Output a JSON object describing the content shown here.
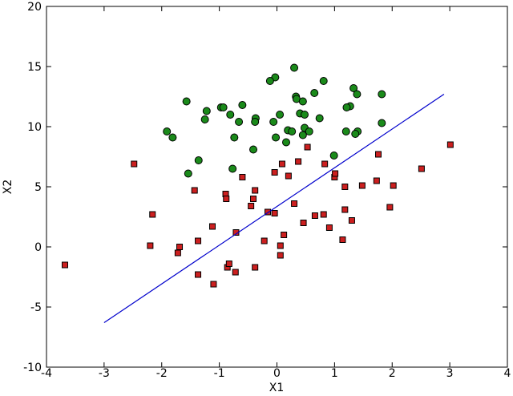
{
  "chart_data": {
    "type": "scatter",
    "xlabel": "X1",
    "ylabel": "X2",
    "xlim": [
      -4,
      4
    ],
    "ylim": [
      -10,
      20
    ],
    "xticks": [
      -4,
      -3,
      -2,
      -1,
      0,
      1,
      2,
      3,
      4
    ],
    "yticks": [
      -10,
      -5,
      0,
      5,
      10,
      15,
      20
    ],
    "series": [
      {
        "type": "scatter",
        "marker": "circle",
        "color": "#1a8a1a",
        "x": [
          0.3,
          -0.03,
          -0.12,
          0.81,
          1.33,
          1.39,
          1.82,
          0.33,
          0.34,
          0.65,
          0.45,
          -0.6,
          -0.97,
          -0.93,
          -1.22,
          -1.57,
          1.27,
          1.21,
          -0.81,
          0.05,
          0.4,
          0.48,
          0.74,
          -0.37,
          -1.25,
          -0.66,
          -0.38,
          -0.06,
          1.82,
          0.19,
          0.26,
          0.48,
          0.56,
          -1.91,
          1.2,
          1.4,
          -1.81,
          -0.74,
          -0.02,
          0.45,
          0.16,
          -0.41,
          -1.36,
          0.99,
          -0.77,
          -1.54,
          1.36
        ],
        "values": [
          14.9,
          14.1,
          13.8,
          13.8,
          13.2,
          12.7,
          12.7,
          12.5,
          12.3,
          12.8,
          12.1,
          11.8,
          11.6,
          11.6,
          11.3,
          12.1,
          11.7,
          11.6,
          11.0,
          11.0,
          11.1,
          11.0,
          10.7,
          10.7,
          10.6,
          10.4,
          10.4,
          10.4,
          10.3,
          9.7,
          9.6,
          9.9,
          9.6,
          9.6,
          9.6,
          9.6,
          9.1,
          9.1,
          9.1,
          9.3,
          8.7,
          8.1,
          7.2,
          7.6,
          6.5,
          6.1,
          9.4
        ]
      },
      {
        "type": "scatter",
        "marker": "square",
        "color": "#cc1f1f",
        "x": [
          -3.68,
          -2.48,
          -2.16,
          -2.2,
          -1.69,
          -1.72,
          -1.43,
          -1.37,
          -1.37,
          -1.12,
          -1.1,
          -0.89,
          -0.88,
          -0.86,
          -0.83,
          -0.71,
          -0.72,
          -0.6,
          -0.45,
          -0.38,
          -0.41,
          -0.38,
          -0.22,
          -0.16,
          -0.04,
          -0.04,
          0.06,
          0.06,
          0.09,
          0.12,
          0.2,
          0.3,
          0.37,
          0.46,
          0.53,
          0.66,
          0.81,
          0.83,
          0.91,
          1.0,
          1.01,
          1.14,
          1.18,
          1.18,
          1.3,
          1.48,
          1.73,
          1.76,
          1.96,
          2.02,
          2.51,
          3.01
        ],
        "values": [
          -1.5,
          6.9,
          2.7,
          0.1,
          0.0,
          -0.5,
          4.7,
          0.5,
          -2.3,
          1.7,
          -3.1,
          4.4,
          4.0,
          -1.7,
          -1.4,
          1.2,
          -2.1,
          5.8,
          3.4,
          4.7,
          4.0,
          -1.7,
          0.5,
          2.9,
          2.8,
          6.2,
          0.1,
          -0.7,
          6.9,
          1.0,
          5.9,
          3.6,
          7.1,
          2.0,
          8.3,
          2.6,
          2.7,
          6.9,
          1.6,
          5.8,
          6.1,
          0.6,
          3.1,
          5.0,
          2.2,
          5.1,
          5.5,
          7.7,
          3.3,
          5.1,
          6.5,
          8.5
        ]
      },
      {
        "type": "line",
        "color": "#0000cc",
        "x": [
          -3.0,
          2.9
        ],
        "values": [
          -6.3,
          12.7
        ]
      }
    ]
  }
}
